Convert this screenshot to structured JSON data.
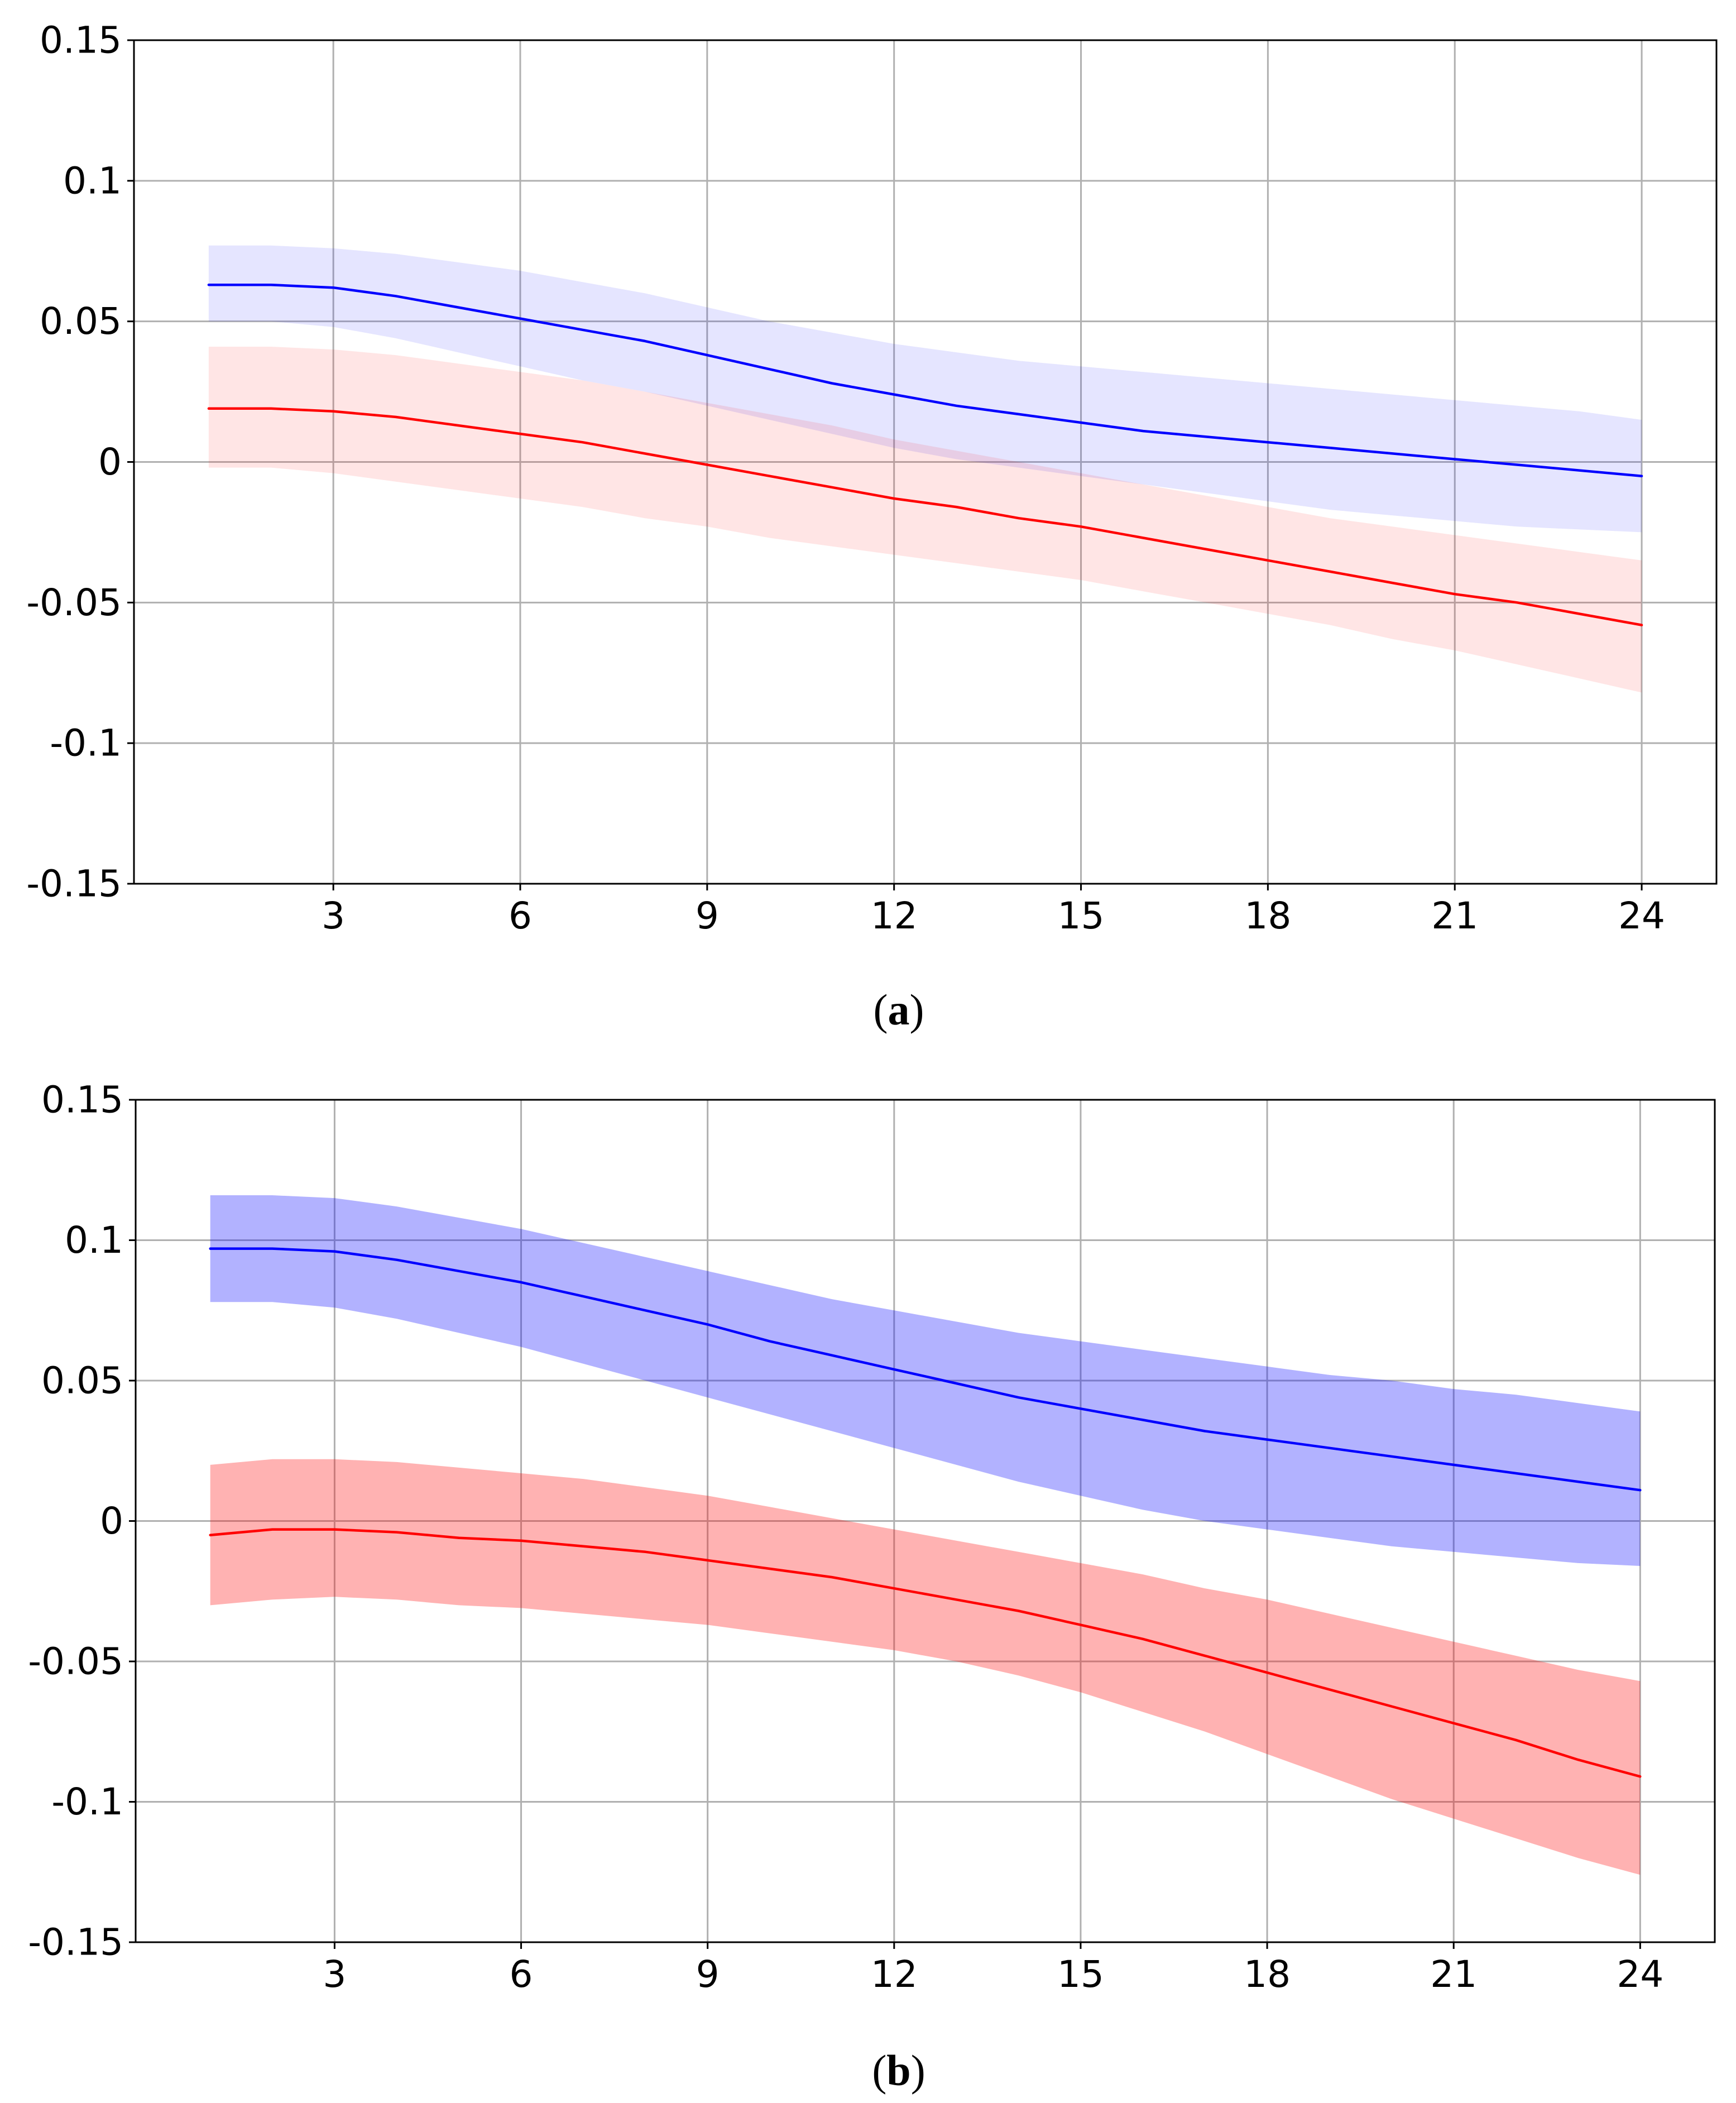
{
  "chart_data": [
    {
      "type": "line",
      "caption_letter": "a",
      "x": [
        1,
        2,
        3,
        4,
        5,
        6,
        7,
        8,
        9,
        10,
        11,
        12,
        13,
        14,
        15,
        16,
        17,
        18,
        19,
        20,
        21,
        22,
        23,
        24
      ],
      "xticks": [
        3,
        6,
        9,
        12,
        15,
        18,
        21,
        24
      ],
      "xtick_labels": [
        "3",
        "6",
        "9",
        "12",
        "15",
        "18",
        "21",
        "24"
      ],
      "xlim": [
        -0.2,
        25.2
      ],
      "yticks": [
        0.15,
        0.1,
        0.05,
        0,
        -0.05,
        -0.1,
        -0.15
      ],
      "ytick_labels": [
        "0.15",
        "0.1",
        "0.05",
        "0",
        "-0.05",
        "-0.1",
        "-0.15"
      ],
      "ylim": [
        -0.15,
        0.15
      ],
      "grid": true,
      "series": [
        {
          "name": "blue",
          "color": "#0000ff",
          "band_color": "#0000ff",
          "band_opacity": 0.1,
          "values": [
            0.063,
            0.063,
            0.062,
            0.059,
            0.055,
            0.051,
            0.047,
            0.043,
            0.038,
            0.033,
            0.028,
            0.024,
            0.02,
            0.017,
            0.014,
            0.011,
            0.009,
            0.007,
            0.005,
            0.003,
            0.001,
            -0.001,
            -0.003,
            -0.005
          ],
          "upper": [
            0.077,
            0.077,
            0.076,
            0.074,
            0.071,
            0.068,
            0.064,
            0.06,
            0.055,
            0.05,
            0.046,
            0.042,
            0.039,
            0.036,
            0.034,
            0.032,
            0.03,
            0.028,
            0.026,
            0.024,
            0.022,
            0.02,
            0.018,
            0.015
          ],
          "lower": [
            0.05,
            0.05,
            0.048,
            0.044,
            0.039,
            0.034,
            0.029,
            0.025,
            0.02,
            0.015,
            0.01,
            0.005,
            0.001,
            -0.002,
            -0.005,
            -0.008,
            -0.011,
            -0.014,
            -0.017,
            -0.019,
            -0.021,
            -0.023,
            -0.024,
            -0.025
          ]
        },
        {
          "name": "red",
          "color": "#ff0000",
          "band_color": "#ff0000",
          "band_opacity": 0.1,
          "values": [
            0.019,
            0.019,
            0.018,
            0.016,
            0.013,
            0.01,
            0.007,
            0.003,
            -0.001,
            -0.005,
            -0.009,
            -0.013,
            -0.016,
            -0.02,
            -0.023,
            -0.027,
            -0.031,
            -0.035,
            -0.039,
            -0.043,
            -0.047,
            -0.05,
            -0.054,
            -0.058
          ],
          "upper": [
            0.041,
            0.041,
            0.04,
            0.038,
            0.035,
            0.032,
            0.029,
            0.025,
            0.021,
            0.017,
            0.013,
            0.008,
            0.004,
            0.0,
            -0.004,
            -0.008,
            -0.012,
            -0.016,
            -0.02,
            -0.023,
            -0.026,
            -0.029,
            -0.032,
            -0.035
          ],
          "lower": [
            -0.002,
            -0.002,
            -0.004,
            -0.007,
            -0.01,
            -0.013,
            -0.016,
            -0.02,
            -0.023,
            -0.027,
            -0.03,
            -0.033,
            -0.036,
            -0.039,
            -0.042,
            -0.046,
            -0.05,
            -0.054,
            -0.058,
            -0.063,
            -0.067,
            -0.072,
            -0.077,
            -0.082
          ]
        }
      ]
    },
    {
      "type": "line",
      "caption_letter": "b",
      "x": [
        1,
        2,
        3,
        4,
        5,
        6,
        7,
        8,
        9,
        10,
        11,
        12,
        13,
        14,
        15,
        16,
        17,
        18,
        19,
        20,
        21,
        22,
        23,
        24
      ],
      "xticks": [
        3,
        6,
        9,
        12,
        15,
        18,
        21,
        24
      ],
      "xtick_labels": [
        "3",
        "6",
        "9",
        "12",
        "15",
        "18",
        "21",
        "24"
      ],
      "xlim": [
        -0.2,
        25.2
      ],
      "yticks": [
        0.15,
        0.1,
        0.05,
        0,
        -0.05,
        -0.1,
        -0.15
      ],
      "ytick_labels": [
        "0.15",
        "0.1",
        "0.05",
        "0",
        "-0.05",
        "-0.1",
        "-0.15"
      ],
      "ylim": [
        -0.15,
        0.15
      ],
      "grid": true,
      "series": [
        {
          "name": "blue",
          "color": "#0000ff",
          "band_color": "#0000ff",
          "band_opacity": 0.3,
          "values": [
            0.097,
            0.097,
            0.096,
            0.093,
            0.089,
            0.085,
            0.08,
            0.075,
            0.07,
            0.064,
            0.059,
            0.054,
            0.049,
            0.044,
            0.04,
            0.036,
            0.032,
            0.029,
            0.026,
            0.023,
            0.02,
            0.017,
            0.014,
            0.011
          ],
          "upper": [
            0.116,
            0.116,
            0.115,
            0.112,
            0.108,
            0.104,
            0.099,
            0.094,
            0.089,
            0.084,
            0.079,
            0.075,
            0.071,
            0.067,
            0.064,
            0.061,
            0.058,
            0.055,
            0.052,
            0.05,
            0.047,
            0.045,
            0.042,
            0.039
          ],
          "lower": [
            0.078,
            0.078,
            0.076,
            0.072,
            0.067,
            0.062,
            0.056,
            0.05,
            0.044,
            0.038,
            0.032,
            0.026,
            0.02,
            0.014,
            0.009,
            0.004,
            0.0,
            -0.003,
            -0.006,
            -0.009,
            -0.011,
            -0.013,
            -0.015,
            -0.016
          ]
        },
        {
          "name": "red",
          "color": "#ff0000",
          "band_color": "#ff0000",
          "band_opacity": 0.3,
          "values": [
            -0.005,
            -0.003,
            -0.003,
            -0.004,
            -0.006,
            -0.007,
            -0.009,
            -0.011,
            -0.014,
            -0.017,
            -0.02,
            -0.024,
            -0.028,
            -0.032,
            -0.037,
            -0.042,
            -0.048,
            -0.054,
            -0.06,
            -0.066,
            -0.072,
            -0.078,
            -0.085,
            -0.091
          ],
          "upper": [
            0.02,
            0.022,
            0.022,
            0.021,
            0.019,
            0.017,
            0.015,
            0.012,
            0.009,
            0.005,
            0.001,
            -0.003,
            -0.007,
            -0.011,
            -0.015,
            -0.019,
            -0.024,
            -0.028,
            -0.033,
            -0.038,
            -0.043,
            -0.048,
            -0.053,
            -0.057
          ],
          "lower": [
            -0.03,
            -0.028,
            -0.027,
            -0.028,
            -0.03,
            -0.031,
            -0.033,
            -0.035,
            -0.037,
            -0.04,
            -0.043,
            -0.046,
            -0.05,
            -0.055,
            -0.061,
            -0.068,
            -0.075,
            -0.083,
            -0.091,
            -0.099,
            -0.106,
            -0.113,
            -0.12,
            -0.126
          ]
        }
      ]
    }
  ]
}
